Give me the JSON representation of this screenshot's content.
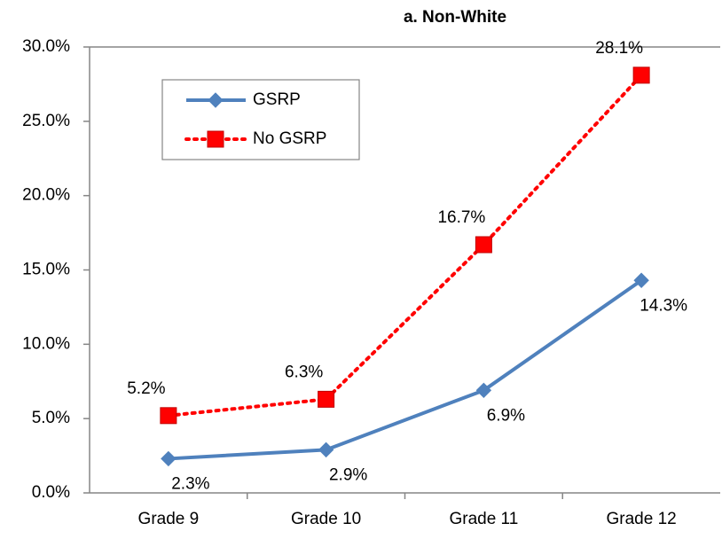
{
  "chart_data": {
    "type": "line",
    "title": "a. Non-White",
    "categories": [
      "Grade 9",
      "Grade 10",
      "Grade 11",
      "Grade 12"
    ],
    "series": [
      {
        "name": "GSRP",
        "color": "#4f81bd",
        "marker": "diamond",
        "dash": "solid",
        "values": [
          2.3,
          2.9,
          6.9,
          14.3
        ],
        "value_labels": [
          "2.3%",
          "2.9%",
          "6.9%",
          "14.3%"
        ]
      },
      {
        "name": "No GSRP",
        "color": "#ff0000",
        "marker": "square",
        "dash": "dotted",
        "values": [
          5.2,
          6.3,
          16.7,
          28.1
        ],
        "value_labels": [
          "5.2%",
          "6.3%",
          "16.7%",
          "28.1%"
        ]
      }
    ],
    "ylim": [
      0,
      30
    ],
    "yticks": [
      {
        "value": 0,
        "label": "0.0%"
      },
      {
        "value": 5,
        "label": "5.0%"
      },
      {
        "value": 10,
        "label": "10.0%"
      },
      {
        "value": 15,
        "label": "15.0%"
      },
      {
        "value": 20,
        "label": "20.0%"
      },
      {
        "value": 25,
        "label": "25.0%"
      },
      {
        "value": 30,
        "label": "30.0%"
      }
    ],
    "grid": false,
    "legend": "upper left"
  }
}
